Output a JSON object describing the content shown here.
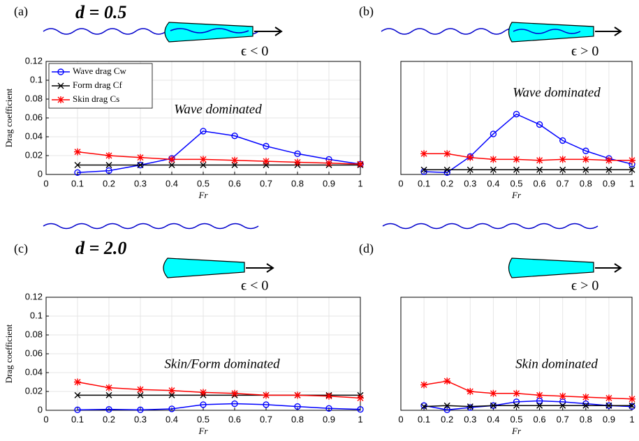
{
  "chart_data": [
    {
      "type": "line",
      "panel": "(a)",
      "heading": "d = 0.5",
      "regime": "ϵ < 0",
      "annotation": "Wave dominated",
      "xlabel": "Fr",
      "ylabel": "Drag coefficient",
      "x": [
        0.1,
        0.2,
        0.3,
        0.4,
        0.5,
        0.6,
        0.7,
        0.8,
        0.9,
        1
      ],
      "series": [
        {
          "name": "Wave drag Cw",
          "color": "#0000ff",
          "marker": "o",
          "values": [
            0.002,
            0.004,
            0.01,
            0.017,
            0.046,
            0.041,
            0.03,
            0.022,
            0.016,
            0.011
          ]
        },
        {
          "name": "Form drag Cf",
          "color": "#000000",
          "marker": "x",
          "values": [
            0.01,
            0.01,
            0.01,
            0.01,
            0.01,
            0.01,
            0.01,
            0.01,
            0.01,
            0.01
          ]
        },
        {
          "name": "Skin drag Cs",
          "color": "#ff0000",
          "marker": "*",
          "values": [
            0.024,
            0.02,
            0.018,
            0.016,
            0.016,
            0.015,
            0.014,
            0.013,
            0.012,
            0.011
          ]
        }
      ],
      "xlim": [
        0,
        1
      ],
      "ylim": [
        0,
        0.12
      ],
      "xticks": [
        0,
        0.1,
        0.2,
        0.3,
        0.4,
        0.5,
        0.6,
        0.7,
        0.8,
        0.9,
        1
      ],
      "yticks": [
        0,
        0.02,
        0.04,
        0.06,
        0.08,
        0.1,
        0.12
      ],
      "grid": true,
      "legend": "upper left"
    },
    {
      "type": "line",
      "panel": "(b)",
      "regime": "ϵ > 0",
      "annotation": "Wave dominated",
      "xlabel": "Fr",
      "x": [
        0.1,
        0.2,
        0.3,
        0.4,
        0.5,
        0.6,
        0.7,
        0.8,
        0.9,
        1
      ],
      "series": [
        {
          "color": "#0000ff",
          "marker": "o",
          "values": [
            0.003,
            0.002,
            0.019,
            0.043,
            0.064,
            0.053,
            0.036,
            0.025,
            0.017,
            0.011
          ]
        },
        {
          "color": "#000000",
          "marker": "x",
          "values": [
            0.005,
            0.005,
            0.005,
            0.005,
            0.005,
            0.005,
            0.005,
            0.005,
            0.005,
            0.005
          ]
        },
        {
          "color": "#ff0000",
          "marker": "*",
          "values": [
            0.022,
            0.022,
            0.018,
            0.016,
            0.016,
            0.015,
            0.016,
            0.016,
            0.015,
            0.015
          ]
        }
      ],
      "xlim": [
        0,
        1
      ],
      "ylim": [
        0,
        0.12
      ],
      "xticks": [
        0,
        0.1,
        0.2,
        0.3,
        0.4,
        0.5,
        0.6,
        0.7,
        0.8,
        0.9,
        1
      ],
      "grid": true
    },
    {
      "type": "line",
      "panel": "(c)",
      "heading": "d = 2.0",
      "regime": "ϵ < 0",
      "annotation": "Skin/Form dominated",
      "xlabel": "Fr",
      "ylabel": "Drag coefficient",
      "x": [
        0.1,
        0.2,
        0.3,
        0.4,
        0.5,
        0.6,
        0.7,
        0.8,
        0.9,
        1
      ],
      "series": [
        {
          "color": "#0000ff",
          "marker": "o",
          "values": [
            0.0005,
            0.001,
            0.0005,
            0.0015,
            0.006,
            0.007,
            0.006,
            0.004,
            0.002,
            0.001
          ]
        },
        {
          "color": "#000000",
          "marker": "x",
          "values": [
            0.016,
            0.016,
            0.016,
            0.016,
            0.016,
            0.016,
            0.016,
            0.016,
            0.016,
            0.016
          ]
        },
        {
          "color": "#ff0000",
          "marker": "*",
          "values": [
            0.03,
            0.024,
            0.022,
            0.021,
            0.019,
            0.018,
            0.016,
            0.016,
            0.015,
            0.013
          ]
        }
      ],
      "xlim": [
        0,
        1
      ],
      "ylim": [
        0,
        0.12
      ],
      "xticks": [
        0,
        0.1,
        0.2,
        0.3,
        0.4,
        0.5,
        0.6,
        0.7,
        0.8,
        0.9,
        1
      ],
      "yticks": [
        0,
        0.02,
        0.04,
        0.06,
        0.08,
        0.1,
        0.12
      ],
      "grid": true
    },
    {
      "type": "line",
      "panel": "(d)",
      "regime": "ϵ > 0",
      "annotation": "Skin dominated",
      "xlabel": "Fr",
      "x": [
        0.1,
        0.2,
        0.3,
        0.4,
        0.5,
        0.6,
        0.7,
        0.8,
        0.9,
        1
      ],
      "series": [
        {
          "color": "#0000ff",
          "marker": "o",
          "values": [
            0.005,
            0.0005,
            0.003,
            0.005,
            0.009,
            0.01,
            0.009,
            0.007,
            0.005,
            0.004
          ]
        },
        {
          "color": "#000000",
          "marker": "x",
          "values": [
            0.004,
            0.005,
            0.004,
            0.005,
            0.005,
            0.005,
            0.005,
            0.005,
            0.005,
            0.005
          ]
        },
        {
          "color": "#ff0000",
          "marker": "*",
          "values": [
            0.027,
            0.031,
            0.02,
            0.018,
            0.018,
            0.016,
            0.015,
            0.014,
            0.013,
            0.012
          ]
        }
      ],
      "xlim": [
        0,
        1
      ],
      "ylim": [
        0,
        0.12
      ],
      "xticks": [
        0,
        0.1,
        0.2,
        0.3,
        0.4,
        0.5,
        0.6,
        0.7,
        0.8,
        0.9,
        1
      ],
      "grid": true
    }
  ]
}
